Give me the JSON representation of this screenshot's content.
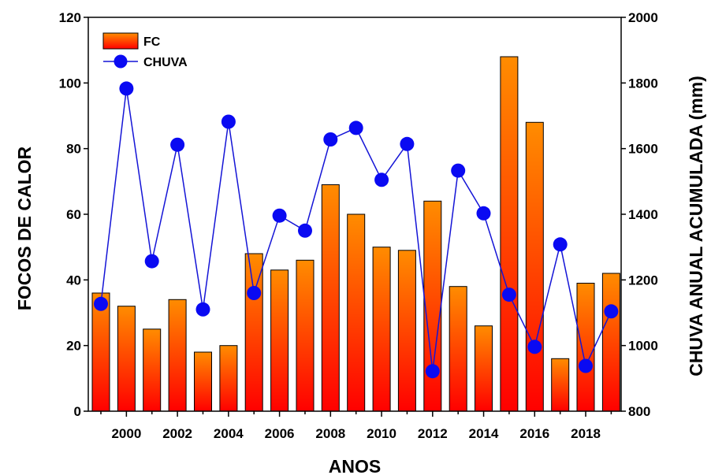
{
  "chart_data": {
    "type": "bar+line",
    "xlabel": "ANOS",
    "ylabel_left": "FOCOS DE CALOR",
    "ylabel_right": "CHUVA ANUAL ACUMULADA (mm)",
    "years": [
      1999,
      2000,
      2001,
      2002,
      2003,
      2004,
      2005,
      2006,
      2007,
      2008,
      2009,
      2010,
      2011,
      2012,
      2013,
      2014,
      2015,
      2016,
      2017,
      2018,
      2019
    ],
    "x_tick_labels": [
      "2000",
      "2002",
      "2004",
      "2006",
      "2008",
      "2010",
      "2012",
      "2014",
      "2016",
      "2018"
    ],
    "ylim_left": [
      0,
      120
    ],
    "y_left_ticks": [
      "0",
      "20",
      "40",
      "60",
      "80",
      "100",
      "120"
    ],
    "ylim_right": [
      800,
      2000
    ],
    "y_right_ticks": [
      "800",
      "1000",
      "1200",
      "1400",
      "1600",
      "1800",
      "2000"
    ],
    "series": [
      {
        "name": "FC",
        "type": "bar",
        "axis": "left",
        "values": [
          36,
          32,
          25,
          34,
          18,
          20,
          48,
          43,
          46,
          69,
          60,
          50,
          49,
          64,
          38,
          26,
          108,
          88,
          16,
          39,
          42
        ]
      },
      {
        "name": "CHUVA",
        "type": "line",
        "axis": "right",
        "values": [
          1127,
          1783,
          1257,
          1612,
          1110,
          1682,
          1160,
          1396,
          1350,
          1628,
          1663,
          1505,
          1614,
          922,
          1533,
          1403,
          1155,
          996,
          1308,
          938,
          1104
        ]
      }
    ],
    "legend": {
      "placement": "top-left"
    },
    "colors": {
      "bar_top": "#ff8c00",
      "bar_bottom": "#ff0000",
      "line": "#1414d6",
      "marker": "#0a0af2"
    }
  }
}
